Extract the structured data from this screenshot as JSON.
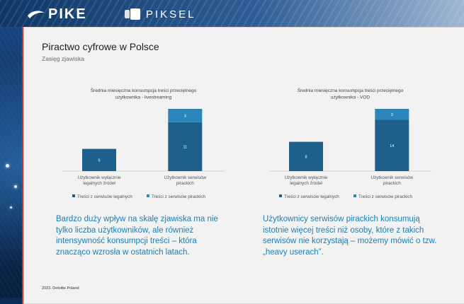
{
  "header": {
    "logo_pike": "PIKE",
    "logo_piksel": "PIKSEL"
  },
  "slide": {
    "title": "Piractwo cyfrowe w Polsce",
    "subtitle": "Zasięg zjawiska",
    "left_text": "Bardzo duży wpływ na skalę zjawiska ma nie tylko liczba użytkowników, ale również intensywność konsumpcji treści – która znacząco wzrosła w ostatnich latach.",
    "right_text": "Użytkownicy serwisów pirackich konsumują istotnie więcej treści niż osoby, które z takich serwisów nie korzystają – możemy mówić o tzw. „heavy userach”.",
    "footer": "2023. Deloitte Poland"
  },
  "colors": {
    "legal": "#1f5f8b",
    "pirate": "#2a86bb",
    "text_blue": "#1b7fb6"
  },
  "chart_data": [
    {
      "type": "bar",
      "stacked": true,
      "title": "Średnia miesięczna konsumpcja treści przeciętnego użytkownika - livestreaming",
      "categories": [
        "Użytkownik wyłącznie legalnych źródeł",
        "Użytkownik serwisów pirackich"
      ],
      "series": [
        {
          "name": "Treści z serwisów legalnych",
          "values": [
            5,
            11
          ]
        },
        {
          "name": "Treści z serwisów pirackich",
          "values": [
            0,
            3
          ]
        }
      ],
      "ylim": [
        0,
        14
      ],
      "legend": "bottom"
    },
    {
      "type": "bar",
      "stacked": true,
      "title": "Średnia miesięczna konsumpcja treści przeciętnego użytkownika - VOD",
      "categories": [
        "Użytkownik wyłącznie legalnych źródeł",
        "Użytkownik serwisów pirackich"
      ],
      "series": [
        {
          "name": "Treści z serwisów legalnych",
          "values": [
            8,
            14
          ]
        },
        {
          "name": "Treści z serwisów pirackich",
          "values": [
            0,
            3
          ]
        }
      ],
      "ylim": [
        0,
        17
      ],
      "legend": "bottom"
    }
  ]
}
